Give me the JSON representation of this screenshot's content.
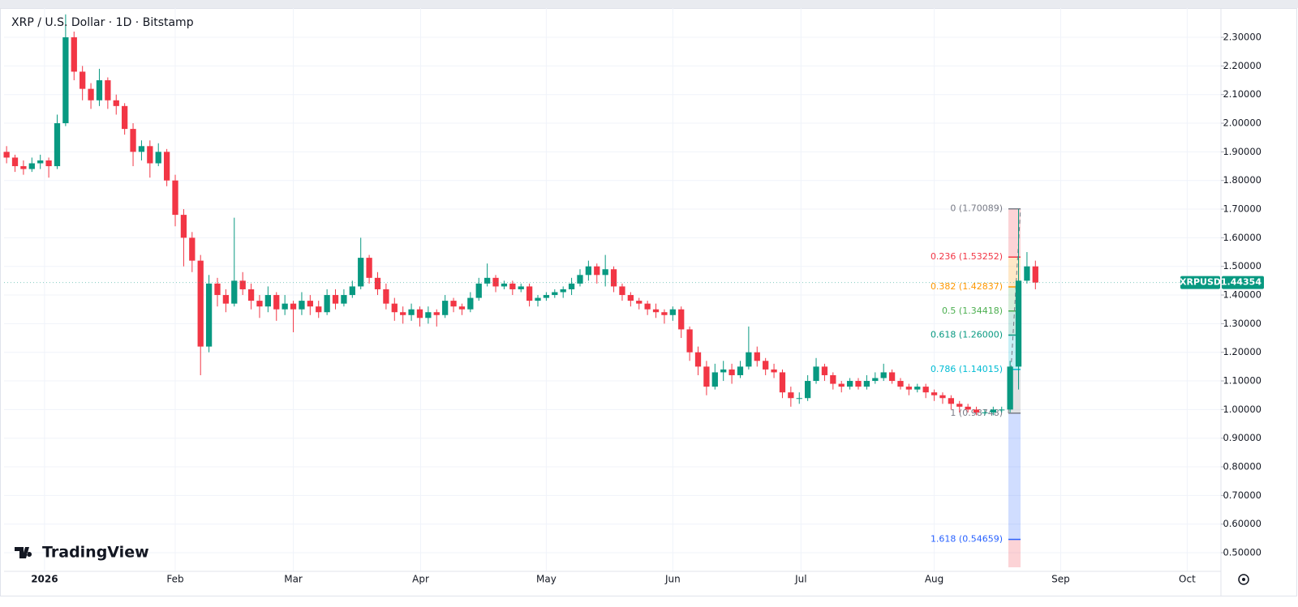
{
  "chart_data": {
    "type": "candlestick",
    "title": "XRP / U.S. Dollar · 1D · Bitstamp",
    "symbol": "XRPUSD",
    "watermark": "TradingView",
    "up_color": "#089981",
    "down_color": "#f23645",
    "grid": true,
    "xlim": [
      -0.3,
      144.0
    ],
    "ylim": [
      0.435,
      2.402
    ],
    "xticks": [
      {
        "value": 4.5,
        "label": "2026"
      },
      {
        "value": 20,
        "label": "Feb"
      },
      {
        "value": 34,
        "label": "Mar"
      },
      {
        "value": 49.1,
        "label": "Apr"
      },
      {
        "value": 64,
        "label": "May"
      },
      {
        "value": 79,
        "label": "Jun"
      },
      {
        "value": 94.2,
        "label": "Jul"
      },
      {
        "value": 110,
        "label": "Aug"
      },
      {
        "value": 125,
        "label": "Sep"
      },
      {
        "value": 140,
        "label": "Oct"
      }
    ],
    "yticks": [
      {
        "value": 0.5,
        "label": "0.50000"
      },
      {
        "value": 0.6,
        "label": "0.60000"
      },
      {
        "value": 0.7,
        "label": "0.70000"
      },
      {
        "value": 0.8,
        "label": "0.80000"
      },
      {
        "value": 0.9,
        "label": "0.90000"
      },
      {
        "value": 1.0,
        "label": "1.00000"
      },
      {
        "value": 1.1,
        "label": "1.10000"
      },
      {
        "value": 1.2,
        "label": "1.20000"
      },
      {
        "value": 1.3,
        "label": "1.30000"
      },
      {
        "value": 1.4,
        "label": "1.40000"
      },
      {
        "value": 1.5,
        "label": "1.50000"
      },
      {
        "value": 1.6,
        "label": "1.60000"
      },
      {
        "value": 1.7,
        "label": "1.70000"
      },
      {
        "value": 1.8,
        "label": "1.80000"
      },
      {
        "value": 1.9,
        "label": "1.90000"
      },
      {
        "value": 2.0,
        "label": "2.00000"
      },
      {
        "value": 2.1,
        "label": "2.10000"
      },
      {
        "value": 2.2,
        "label": "2.20000"
      },
      {
        "value": 2.3,
        "label": "2.30000"
      }
    ],
    "candles": [
      [
        1.9,
        1.92,
        1.86,
        1.88
      ],
      [
        1.88,
        1.89,
        1.83,
        1.85
      ],
      [
        1.85,
        1.87,
        1.82,
        1.84
      ],
      [
        1.84,
        1.88,
        1.83,
        1.86
      ],
      [
        1.86,
        1.89,
        1.84,
        1.87
      ],
      [
        1.87,
        1.88,
        1.81,
        1.85
      ],
      [
        1.85,
        2.03,
        1.84,
        2.0
      ],
      [
        2.0,
        2.38,
        1.99,
        2.3
      ],
      [
        2.3,
        2.32,
        2.15,
        2.18
      ],
      [
        2.18,
        2.2,
        2.08,
        2.12
      ],
      [
        2.12,
        2.14,
        2.05,
        2.08
      ],
      [
        2.08,
        2.19,
        2.06,
        2.15
      ],
      [
        2.15,
        2.16,
        2.05,
        2.08
      ],
      [
        2.08,
        2.1,
        2.03,
        2.06
      ],
      [
        2.06,
        2.07,
        1.96,
        1.98
      ],
      [
        1.98,
        2.0,
        1.85,
        1.9
      ],
      [
        1.9,
        1.94,
        1.87,
        1.92
      ],
      [
        1.92,
        1.94,
        1.81,
        1.86
      ],
      [
        1.86,
        1.93,
        1.85,
        1.9
      ],
      [
        1.9,
        1.91,
        1.78,
        1.8
      ],
      [
        1.8,
        1.82,
        1.64,
        1.68
      ],
      [
        1.68,
        1.7,
        1.5,
        1.6
      ],
      [
        1.6,
        1.62,
        1.48,
        1.52
      ],
      [
        1.52,
        1.54,
        1.12,
        1.22
      ],
      [
        1.22,
        1.47,
        1.2,
        1.44
      ],
      [
        1.44,
        1.46,
        1.36,
        1.4
      ],
      [
        1.4,
        1.42,
        1.34,
        1.37
      ],
      [
        1.37,
        1.67,
        1.36,
        1.45
      ],
      [
        1.45,
        1.48,
        1.4,
        1.42
      ],
      [
        1.42,
        1.44,
        1.35,
        1.38
      ],
      [
        1.38,
        1.4,
        1.32,
        1.36
      ],
      [
        1.36,
        1.43,
        1.34,
        1.4
      ],
      [
        1.4,
        1.41,
        1.31,
        1.35
      ],
      [
        1.35,
        1.4,
        1.33,
        1.37
      ],
      [
        1.37,
        1.38,
        1.27,
        1.35
      ],
      [
        1.35,
        1.41,
        1.33,
        1.38
      ],
      [
        1.38,
        1.4,
        1.33,
        1.36
      ],
      [
        1.36,
        1.38,
        1.32,
        1.34
      ],
      [
        1.34,
        1.42,
        1.33,
        1.4
      ],
      [
        1.4,
        1.42,
        1.35,
        1.37
      ],
      [
        1.37,
        1.42,
        1.36,
        1.4
      ],
      [
        1.4,
        1.45,
        1.39,
        1.43
      ],
      [
        1.43,
        1.6,
        1.42,
        1.53
      ],
      [
        1.53,
        1.54,
        1.44,
        1.46
      ],
      [
        1.46,
        1.48,
        1.4,
        1.42
      ],
      [
        1.42,
        1.44,
        1.35,
        1.37
      ],
      [
        1.37,
        1.39,
        1.31,
        1.34
      ],
      [
        1.34,
        1.36,
        1.3,
        1.33
      ],
      [
        1.33,
        1.37,
        1.31,
        1.35
      ],
      [
        1.35,
        1.36,
        1.29,
        1.32
      ],
      [
        1.32,
        1.36,
        1.3,
        1.34
      ],
      [
        1.34,
        1.35,
        1.29,
        1.33
      ],
      [
        1.33,
        1.4,
        1.32,
        1.38
      ],
      [
        1.38,
        1.39,
        1.34,
        1.36
      ],
      [
        1.36,
        1.37,
        1.33,
        1.35
      ],
      [
        1.35,
        1.41,
        1.34,
        1.39
      ],
      [
        1.39,
        1.46,
        1.38,
        1.44
      ],
      [
        1.44,
        1.51,
        1.43,
        1.46
      ],
      [
        1.46,
        1.47,
        1.41,
        1.43
      ],
      [
        1.43,
        1.45,
        1.42,
        1.44
      ],
      [
        1.44,
        1.45,
        1.4,
        1.42
      ],
      [
        1.42,
        1.44,
        1.41,
        1.43
      ],
      [
        1.43,
        1.44,
        1.36,
        1.38
      ],
      [
        1.38,
        1.4,
        1.36,
        1.39
      ],
      [
        1.39,
        1.41,
        1.38,
        1.4
      ],
      [
        1.4,
        1.42,
        1.39,
        1.41
      ],
      [
        1.41,
        1.43,
        1.39,
        1.42
      ],
      [
        1.42,
        1.46,
        1.4,
        1.44
      ],
      [
        1.44,
        1.49,
        1.43,
        1.47
      ],
      [
        1.47,
        1.52,
        1.45,
        1.5
      ],
      [
        1.5,
        1.51,
        1.44,
        1.47
      ],
      [
        1.47,
        1.54,
        1.43,
        1.49
      ],
      [
        1.49,
        1.5,
        1.41,
        1.43
      ],
      [
        1.43,
        1.44,
        1.38,
        1.4
      ],
      [
        1.4,
        1.41,
        1.36,
        1.38
      ],
      [
        1.38,
        1.39,
        1.35,
        1.37
      ],
      [
        1.37,
        1.38,
        1.33,
        1.35
      ],
      [
        1.35,
        1.37,
        1.32,
        1.34
      ],
      [
        1.34,
        1.35,
        1.3,
        1.33
      ],
      [
        1.33,
        1.36,
        1.31,
        1.35
      ],
      [
        1.35,
        1.36,
        1.25,
        1.28
      ],
      [
        1.28,
        1.29,
        1.17,
        1.2
      ],
      [
        1.2,
        1.22,
        1.12,
        1.15
      ],
      [
        1.15,
        1.17,
        1.05,
        1.08
      ],
      [
        1.08,
        1.16,
        1.07,
        1.13
      ],
      [
        1.13,
        1.17,
        1.1,
        1.14
      ],
      [
        1.14,
        1.16,
        1.09,
        1.12
      ],
      [
        1.12,
        1.17,
        1.11,
        1.15
      ],
      [
        1.15,
        1.29,
        1.14,
        1.2
      ],
      [
        1.2,
        1.22,
        1.15,
        1.17
      ],
      [
        1.17,
        1.18,
        1.12,
        1.14
      ],
      [
        1.14,
        1.16,
        1.11,
        1.13
      ],
      [
        1.13,
        1.14,
        1.04,
        1.06
      ],
      [
        1.06,
        1.08,
        1.01,
        1.04
      ],
      [
        1.04,
        1.06,
        1.02,
        1.04
      ],
      [
        1.04,
        1.12,
        1.03,
        1.1
      ],
      [
        1.1,
        1.18,
        1.09,
        1.15
      ],
      [
        1.15,
        1.16,
        1.1,
        1.12
      ],
      [
        1.12,
        1.13,
        1.07,
        1.09
      ],
      [
        1.09,
        1.1,
        1.06,
        1.08
      ],
      [
        1.08,
        1.11,
        1.07,
        1.1
      ],
      [
        1.1,
        1.11,
        1.07,
        1.08
      ],
      [
        1.08,
        1.12,
        1.07,
        1.1
      ],
      [
        1.1,
        1.13,
        1.09,
        1.11
      ],
      [
        1.11,
        1.16,
        1.1,
        1.13
      ],
      [
        1.13,
        1.14,
        1.09,
        1.1
      ],
      [
        1.1,
        1.11,
        1.07,
        1.08
      ],
      [
        1.08,
        1.09,
        1.05,
        1.07
      ],
      [
        1.07,
        1.09,
        1.06,
        1.08
      ],
      [
        1.08,
        1.09,
        1.04,
        1.06
      ],
      [
        1.06,
        1.07,
        1.03,
        1.05
      ],
      [
        1.05,
        1.06,
        1.02,
        1.04
      ],
      [
        1.04,
        1.05,
        1.0,
        1.02
      ],
      [
        1.02,
        1.03,
        0.99,
        1.01
      ],
      [
        1.01,
        1.02,
        0.99,
        1.0
      ],
      [
        1.0,
        1.01,
        0.98,
        0.99
      ],
      [
        0.99,
        1.0,
        0.98,
        0.99
      ],
      [
        0.99,
        1.01,
        0.98,
        1.0
      ],
      [
        1.0,
        1.01,
        0.99,
        1.0
      ],
      [
        1.0,
        1.17,
        0.99,
        1.15
      ],
      [
        1.15,
        1.7,
        1.07,
        1.45
      ],
      [
        1.45,
        1.55,
        1.44,
        1.5
      ],
      [
        1.5,
        1.52,
        1.42,
        1.44354
      ]
    ],
    "fib": {
      "extension_color": "#f23645",
      "levels": [
        {
          "value": 1.70089,
          "label": "0 (1.70089)",
          "color": "#787b86"
        },
        {
          "value": 1.53252,
          "label": "0.236 (1.53252)",
          "color": "#f23645"
        },
        {
          "value": 1.42837,
          "label": "0.382 (1.42837)",
          "color": "#ff9800"
        },
        {
          "value": 1.34418,
          "label": "0.5 (1.34418)",
          "color": "#4caf50"
        },
        {
          "value": 1.26,
          "label": "0.618 (1.26000)",
          "color": "#089981"
        },
        {
          "value": 1.14015,
          "label": "0.786 (1.14015)",
          "color": "#00bcd4"
        },
        {
          "value": 0.98748,
          "label": "1 (0.98748)",
          "color": "#787b86"
        },
        {
          "value": 0.54659,
          "label": "1.618 (0.54659)",
          "color": "#2962ff"
        }
      ]
    }
  }
}
